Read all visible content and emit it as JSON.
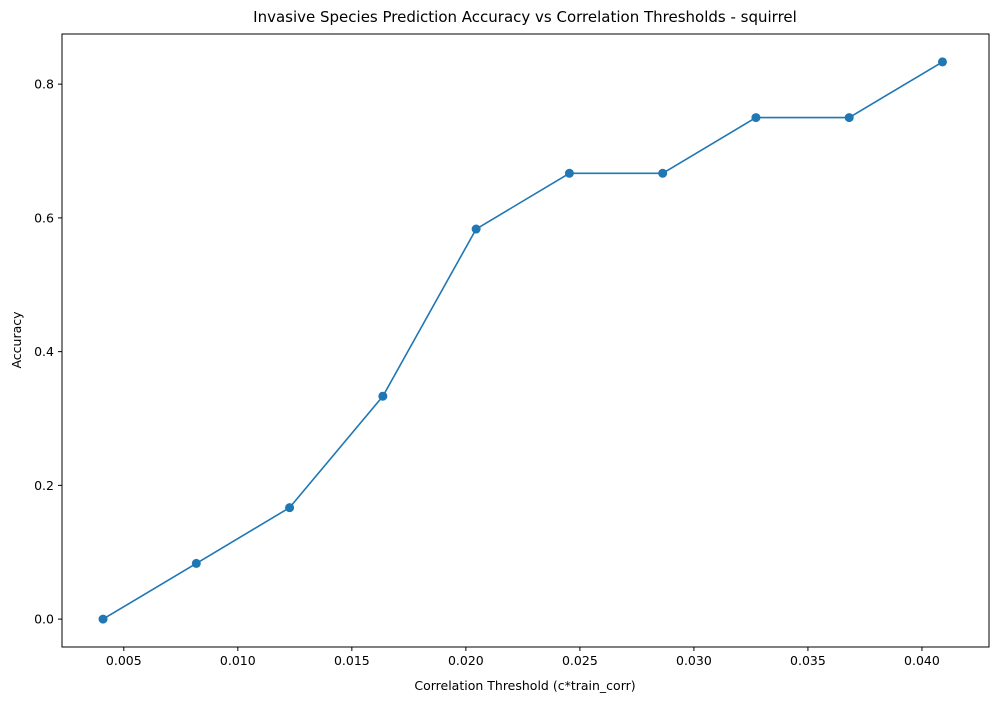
{
  "chart_data": {
    "type": "line",
    "title": "Invasive Species Prediction Accuracy vs Correlation Thresholds - squirrel",
    "xlabel": "Correlation Threshold (c*train_corr)",
    "ylabel": "Accuracy",
    "xlim": [
      0.00229,
      0.04294
    ],
    "ylim": [
      -0.0417,
      0.875
    ],
    "x_ticks": [
      {
        "value": 0.005,
        "label": "0.005"
      },
      {
        "value": 0.01,
        "label": "0.010"
      },
      {
        "value": 0.015,
        "label": "0.015"
      },
      {
        "value": 0.02,
        "label": "0.020"
      },
      {
        "value": 0.025,
        "label": "0.025"
      },
      {
        "value": 0.03,
        "label": "0.030"
      },
      {
        "value": 0.035,
        "label": "0.035"
      },
      {
        "value": 0.04,
        "label": "0.040"
      }
    ],
    "y_ticks": [
      {
        "value": 0.0,
        "label": "0.0"
      },
      {
        "value": 0.2,
        "label": "0.2"
      },
      {
        "value": 0.4,
        "label": "0.4"
      },
      {
        "value": 0.6,
        "label": "0.6"
      },
      {
        "value": 0.8,
        "label": "0.8"
      }
    ],
    "grid": false,
    "marker": "circle",
    "color": "#1f77b4",
    "series": [
      {
        "x": [
          0.00409,
          0.00818,
          0.01227,
          0.01636,
          0.02045,
          0.02454,
          0.02863,
          0.03272,
          0.03681,
          0.0409
        ],
        "y": [
          0.0,
          0.0833,
          0.1667,
          0.3333,
          0.5833,
          0.6667,
          0.6667,
          0.75,
          0.75,
          0.8333
        ]
      }
    ]
  }
}
